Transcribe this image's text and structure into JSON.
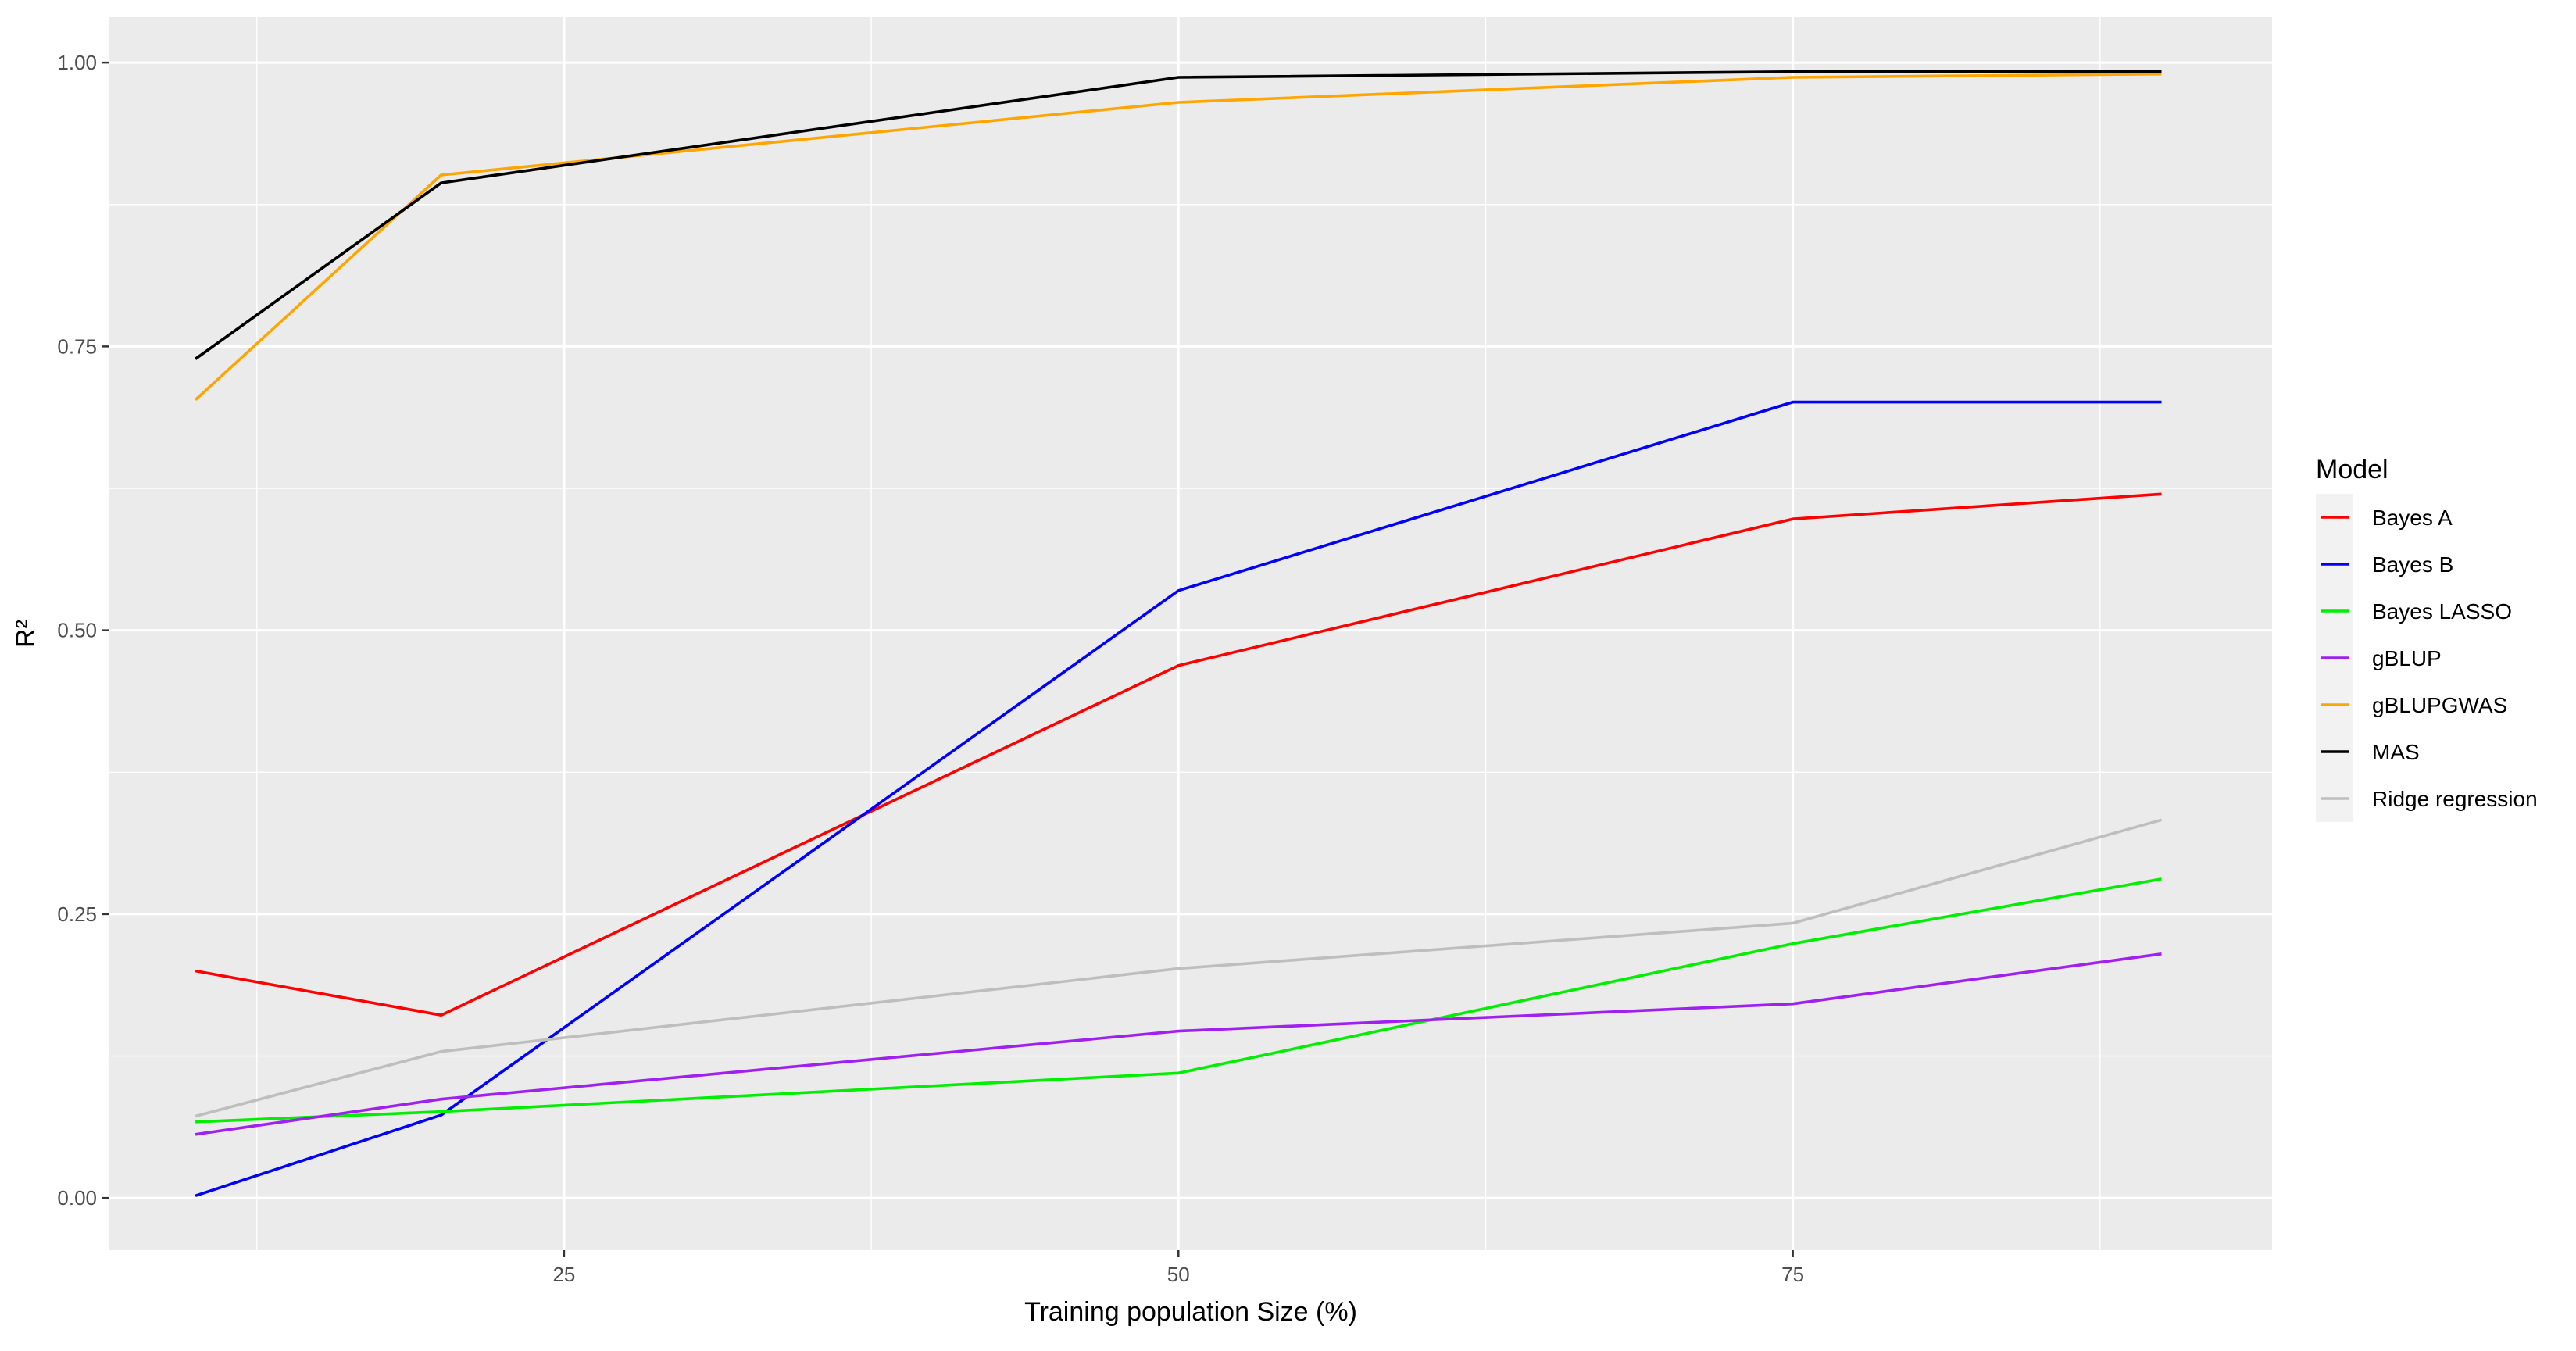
{
  "chart_data": {
    "type": "line",
    "title": "",
    "xlabel": "Training population Size (%)",
    "ylabel": "R²",
    "xlim": [
      6.5,
      94.5
    ],
    "ylim": [
      -0.046,
      1.04
    ],
    "x_ticks": [
      {
        "value": 25,
        "label": "25"
      },
      {
        "value": 50,
        "label": "50"
      },
      {
        "value": 75,
        "label": "75"
      }
    ],
    "y_ticks": [
      {
        "value": 0.0,
        "label": "0.00"
      },
      {
        "value": 0.25,
        "label": "0.25"
      },
      {
        "value": 0.5,
        "label": "0.50"
      },
      {
        "value": 0.75,
        "label": "0.75"
      },
      {
        "value": 1.0,
        "label": "1.00"
      }
    ],
    "grid": true,
    "panel_background": "#ebebeb",
    "grid_color": "#ffffff",
    "legend": {
      "title": "Model",
      "position": "right"
    },
    "x": [
      10,
      20,
      50,
      75,
      90
    ],
    "series": [
      {
        "name": "Bayes A",
        "color": "#ff0000",
        "values": [
          0.2,
          0.161,
          0.469,
          0.598,
          0.62
        ]
      },
      {
        "name": "Bayes B",
        "color": "#0000ff",
        "values": [
          0.002,
          0.073,
          0.535,
          0.701,
          0.701
        ]
      },
      {
        "name": "Bayes LASSO",
        "color": "#00ee00",
        "values": [
          0.067,
          0.076,
          0.11,
          0.224,
          0.281
        ]
      },
      {
        "name": "gBLUP",
        "color": "#a020f0",
        "values": [
          0.056,
          0.087,
          0.147,
          0.171,
          0.215
        ]
      },
      {
        "name": "gBLUPGWAS",
        "color": "#ffa500",
        "values": [
          0.703,
          0.901,
          0.965,
          0.987,
          0.99
        ]
      },
      {
        "name": "MAS",
        "color": "#000000",
        "values": [
          0.739,
          0.894,
          0.987,
          0.992,
          0.992
        ]
      },
      {
        "name": "Ridge regression",
        "color": "#bebebe",
        "values": [
          0.072,
          0.129,
          0.202,
          0.242,
          0.333
        ]
      }
    ]
  }
}
